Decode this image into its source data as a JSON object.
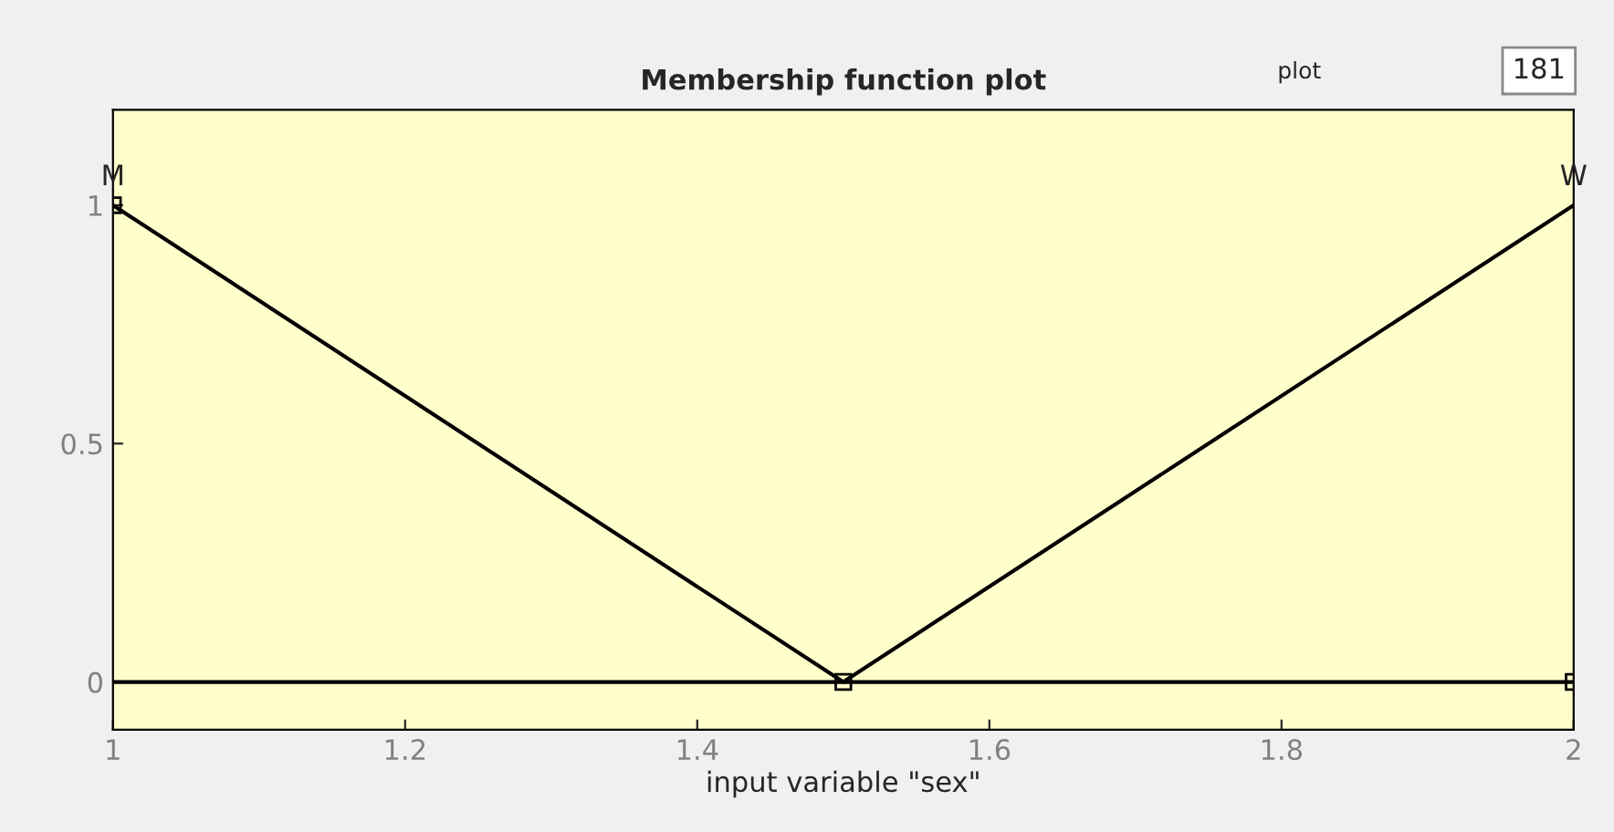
{
  "chart_data": {
    "type": "line",
    "title": "Membership function plot",
    "xlabel": "input variable \"sex\"",
    "x": [
      1,
      1.5,
      2
    ],
    "series": [
      {
        "name": "M",
        "color": "#000000",
        "values": [
          1,
          0,
          0
        ],
        "marker": "square"
      },
      {
        "name": "W",
        "color": "#000000",
        "values": [
          0,
          0,
          1
        ]
      }
    ],
    "xlim": [
      1,
      2
    ],
    "ylim": [
      -0.1,
      1.2
    ],
    "xticks": [
      1,
      1.2,
      1.4,
      1.6,
      1.8,
      2
    ],
    "yticks": [
      0,
      0.5,
      1
    ],
    "annotations": [
      "plot",
      "181"
    ],
    "grid": false,
    "legend": false,
    "line_style": "solid"
  }
}
